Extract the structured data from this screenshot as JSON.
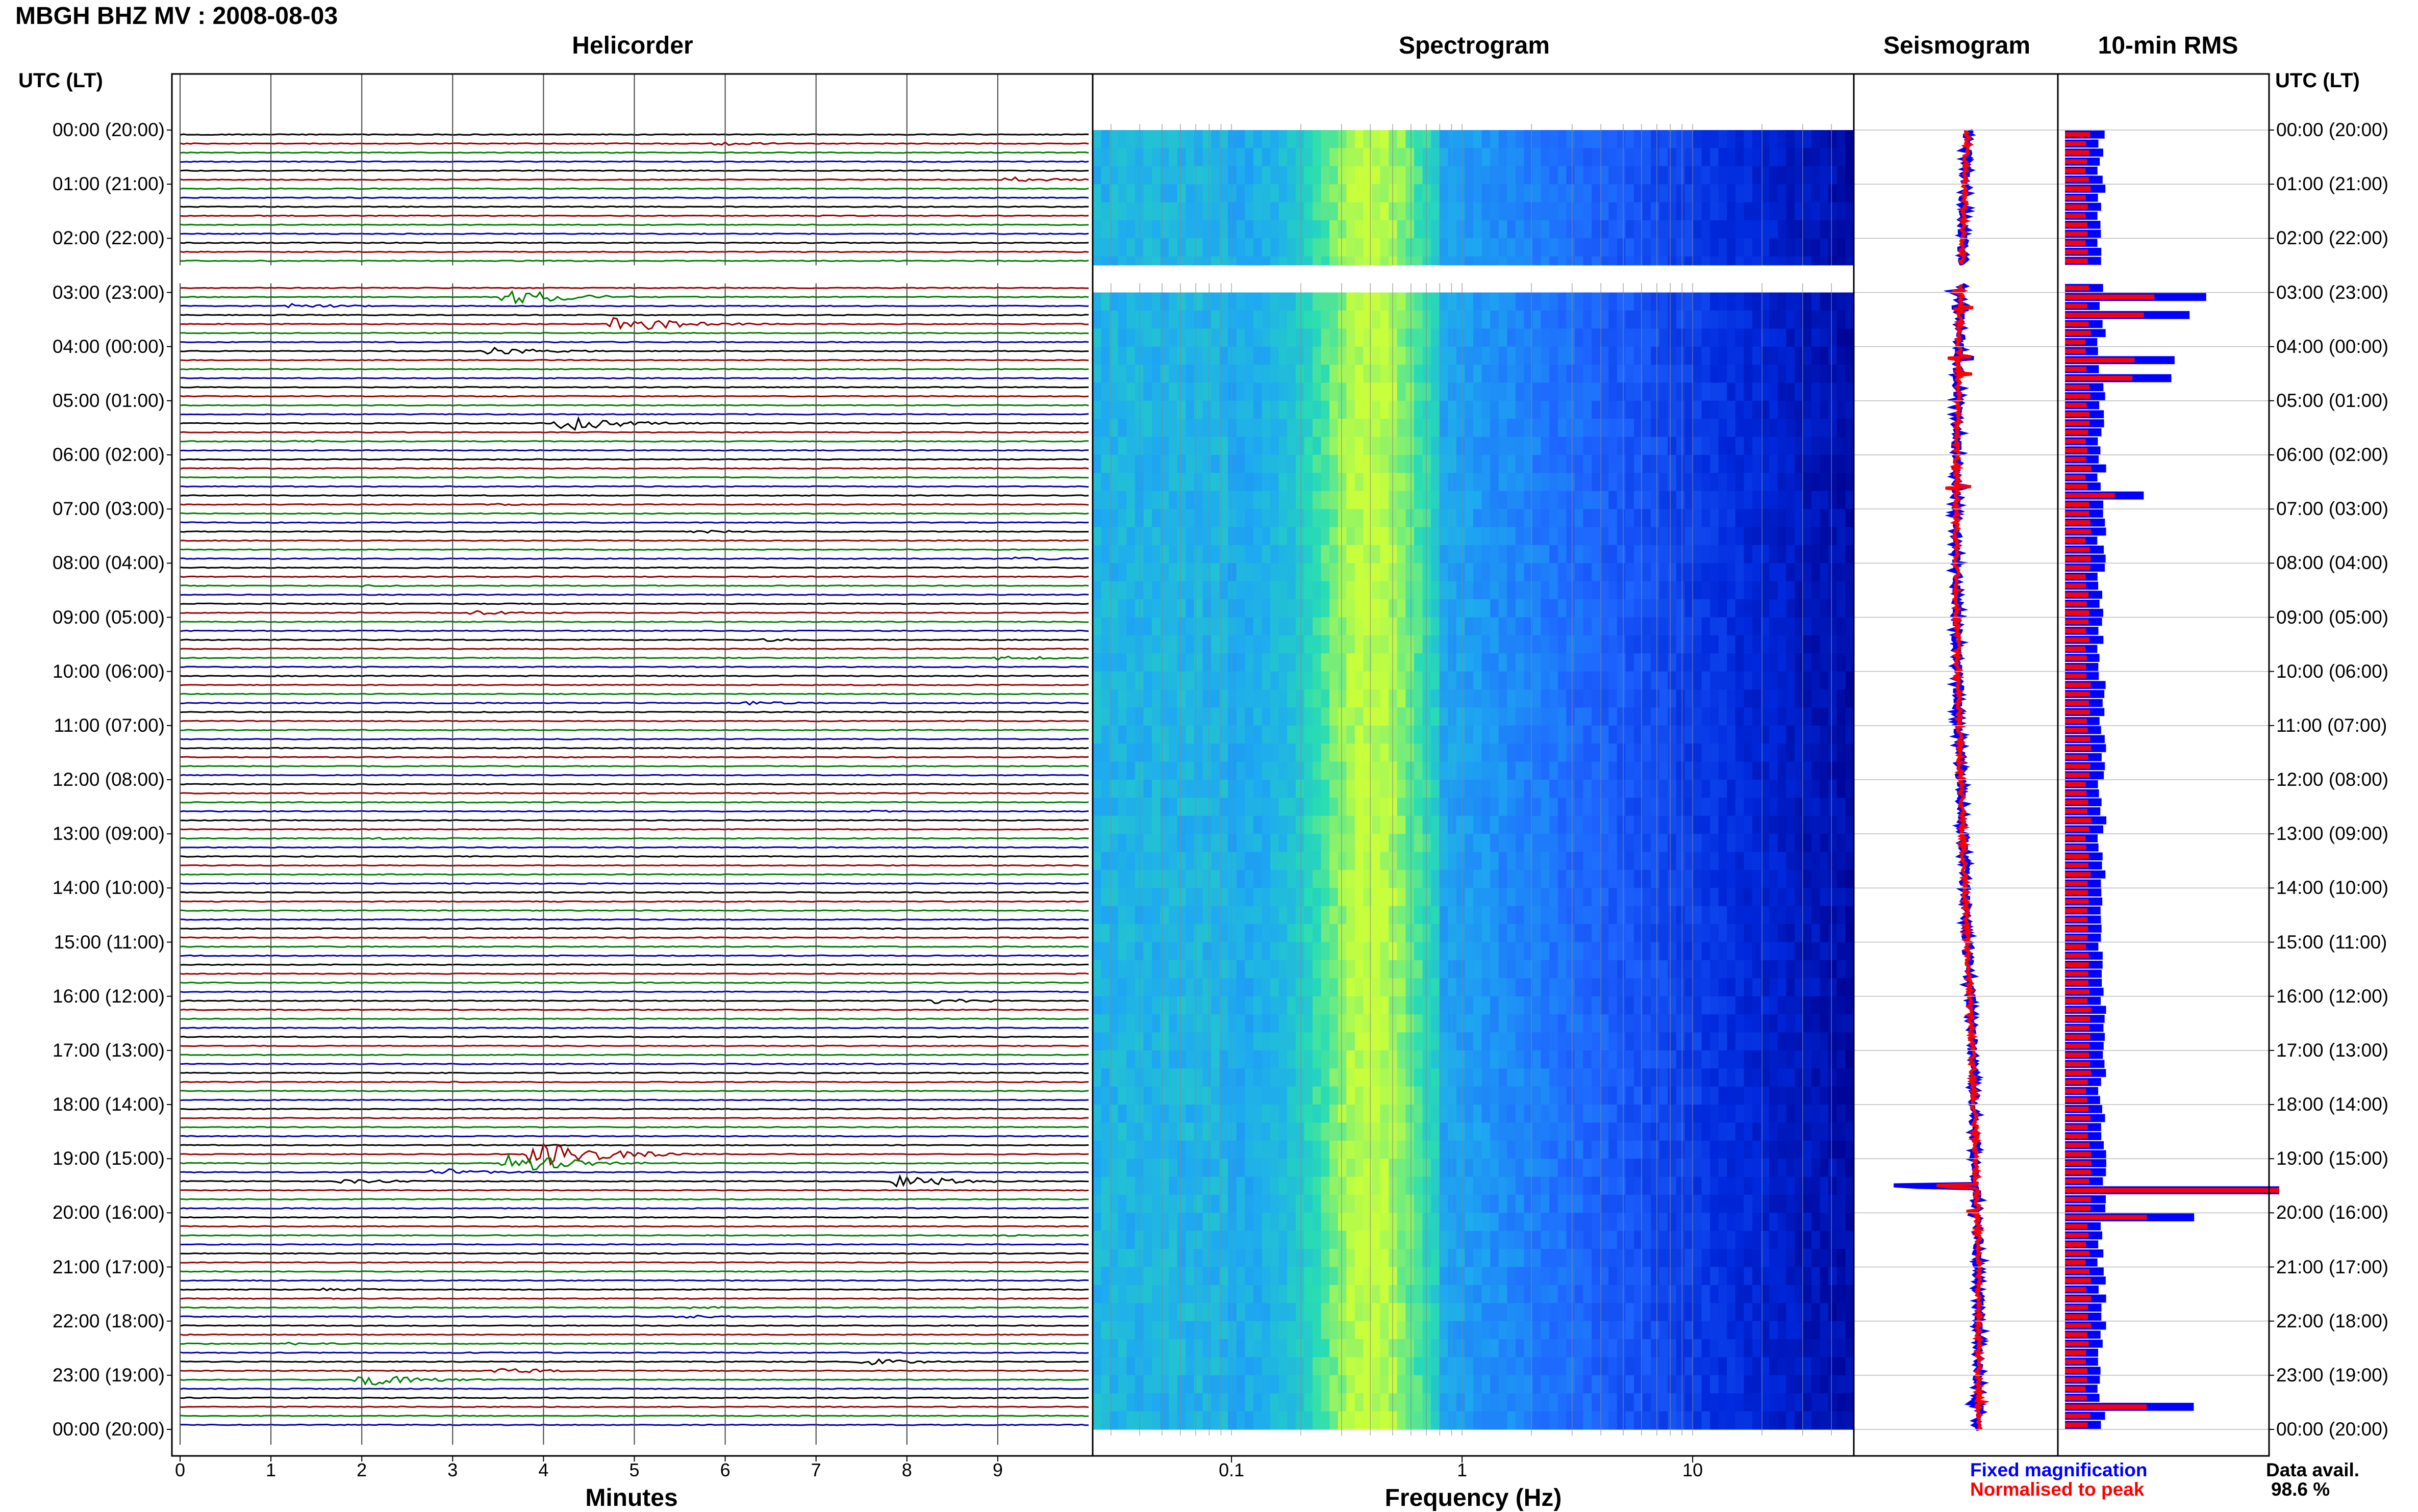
{
  "header": {
    "title": "MBGH BHZ MV : 2008-08-03"
  },
  "panels": {
    "helicorder": "Helicorder",
    "spectrogram": "Spectrogram",
    "seismogram": "Seismogram",
    "rms": "10-min RMS"
  },
  "time_axis": {
    "header": "UTC (LT)",
    "labels": [
      "00:00 (20:00)",
      "01:00 (21:00)",
      "02:00 (22:00)",
      "03:00 (23:00)",
      "04:00 (00:00)",
      "05:00 (01:00)",
      "06:00 (02:00)",
      "07:00 (03:00)",
      "08:00 (04:00)",
      "09:00 (05:00)",
      "10:00 (06:00)",
      "11:00 (07:00)",
      "12:00 (08:00)",
      "13:00 (09:00)",
      "14:00 (10:00)",
      "15:00 (11:00)",
      "16:00 (12:00)",
      "17:00 (13:00)",
      "18:00 (14:00)",
      "19:00 (15:00)",
      "20:00 (16:00)",
      "21:00 (17:00)",
      "22:00 (18:00)",
      "23:00 (19:00)",
      "00:00 (20:00)"
    ]
  },
  "footer": {
    "legend_fixed": "Fixed magnification",
    "legend_norm": "Normalised to peak",
    "data_avail_label": "Data avail.",
    "data_avail_value": "98.6 %"
  },
  "colors": {
    "helicorder_traces": [
      "#000000",
      "#9b0000",
      "#008000",
      "#0000b4"
    ],
    "fixed_magnification": "#0000ff",
    "normalised_to_peak": "#ff0000",
    "spectrogram_low": "#00008c",
    "spectrogram_mid": "#1e64ff",
    "spectrogram_high": "#c8ff3c"
  },
  "chart_data": [
    {
      "type": "line",
      "panel": "Helicorder",
      "xlabel": "Minutes",
      "x_ticks": [
        0,
        1,
        2,
        3,
        4,
        5,
        6,
        7,
        8,
        9
      ],
      "xlim": [
        0,
        10
      ],
      "row_minutes": 10,
      "rows_per_hour": 6,
      "events": [
        {
          "row": 1,
          "minute": 5.9,
          "amp": 0.25
        },
        {
          "row": 5,
          "minute": 9.1,
          "amp": 0.35
        },
        {
          "row": 18,
          "minute": 3.6,
          "amp": 1.1
        },
        {
          "row": 19,
          "minute": 1.2,
          "amp": 0.3
        },
        {
          "row": 21,
          "minute": 4.8,
          "amp": 1.2
        },
        {
          "row": 24,
          "minute": 3.4,
          "amp": 0.5
        },
        {
          "row": 32,
          "minute": 4.2,
          "amp": 1.0
        },
        {
          "row": 34,
          "minute": 1.3,
          "amp": 0.15
        },
        {
          "row": 41,
          "minute": 3.3,
          "amp": 0.15
        },
        {
          "row": 44,
          "minute": 5.7,
          "amp": 0.2
        },
        {
          "row": 47,
          "minute": 9.2,
          "amp": 0.25
        },
        {
          "row": 50,
          "minute": 2.0,
          "amp": 0.15
        },
        {
          "row": 53,
          "minute": 3.2,
          "amp": 0.3
        },
        {
          "row": 56,
          "minute": 6.4,
          "amp": 0.2
        },
        {
          "row": 58,
          "minute": 9.0,
          "amp": 0.3
        },
        {
          "row": 63,
          "minute": 6.2,
          "amp": 0.25
        },
        {
          "row": 75,
          "minute": 7.5,
          "amp": 0.15
        },
        {
          "row": 78,
          "minute": 2.1,
          "amp": 0.15
        },
        {
          "row": 96,
          "minute": 8.3,
          "amp": 0.35
        },
        {
          "row": 113,
          "minute": 3.9,
          "amp": 2.2
        },
        {
          "row": 114,
          "minute": 3.6,
          "amp": 1.4
        },
        {
          "row": 115,
          "minute": 2.8,
          "amp": 0.5
        },
        {
          "row": 116,
          "minute": 1.8,
          "amp": 0.3
        },
        {
          "row": 116,
          "minute": 7.9,
          "amp": 0.8
        },
        {
          "row": 122,
          "minute": 9.0,
          "amp": 0.2
        },
        {
          "row": 128,
          "minute": 1.6,
          "amp": 0.2
        },
        {
          "row": 130,
          "minute": 5.6,
          "amp": 0.2
        },
        {
          "row": 131,
          "minute": 5.5,
          "amp": 0.2
        },
        {
          "row": 134,
          "minute": 1.2,
          "amp": 0.2
        },
        {
          "row": 136,
          "minute": 7.5,
          "amp": 0.5
        },
        {
          "row": 137,
          "minute": 3.5,
          "amp": 0.4
        },
        {
          "row": 138,
          "minute": 2.0,
          "amp": 0.8
        }
      ],
      "data_gap_hours": [
        2.5,
        2.83
      ]
    },
    {
      "type": "heatmap",
      "panel": "Spectrogram",
      "xlabel": "Frequency (Hz)",
      "x_scale": "log",
      "xlim": [
        0.025,
        50
      ],
      "x_ticks": [
        0.1,
        1,
        10
      ]
    },
    {
      "type": "line",
      "panel": "Seismogram",
      "series": [
        {
          "name": "Fixed magnification"
        },
        {
          "name": "Normalised to peak"
        }
      ]
    },
    {
      "type": "bar",
      "panel": "10-min RMS",
      "series": [
        {
          "name": "Fixed magnification"
        },
        {
          "name": "Normalised to peak"
        }
      ],
      "peak_hours": [
        3.0,
        3.3,
        4.2,
        4.5,
        6.6,
        19.5,
        19.5,
        20.0,
        23.5
      ]
    }
  ]
}
